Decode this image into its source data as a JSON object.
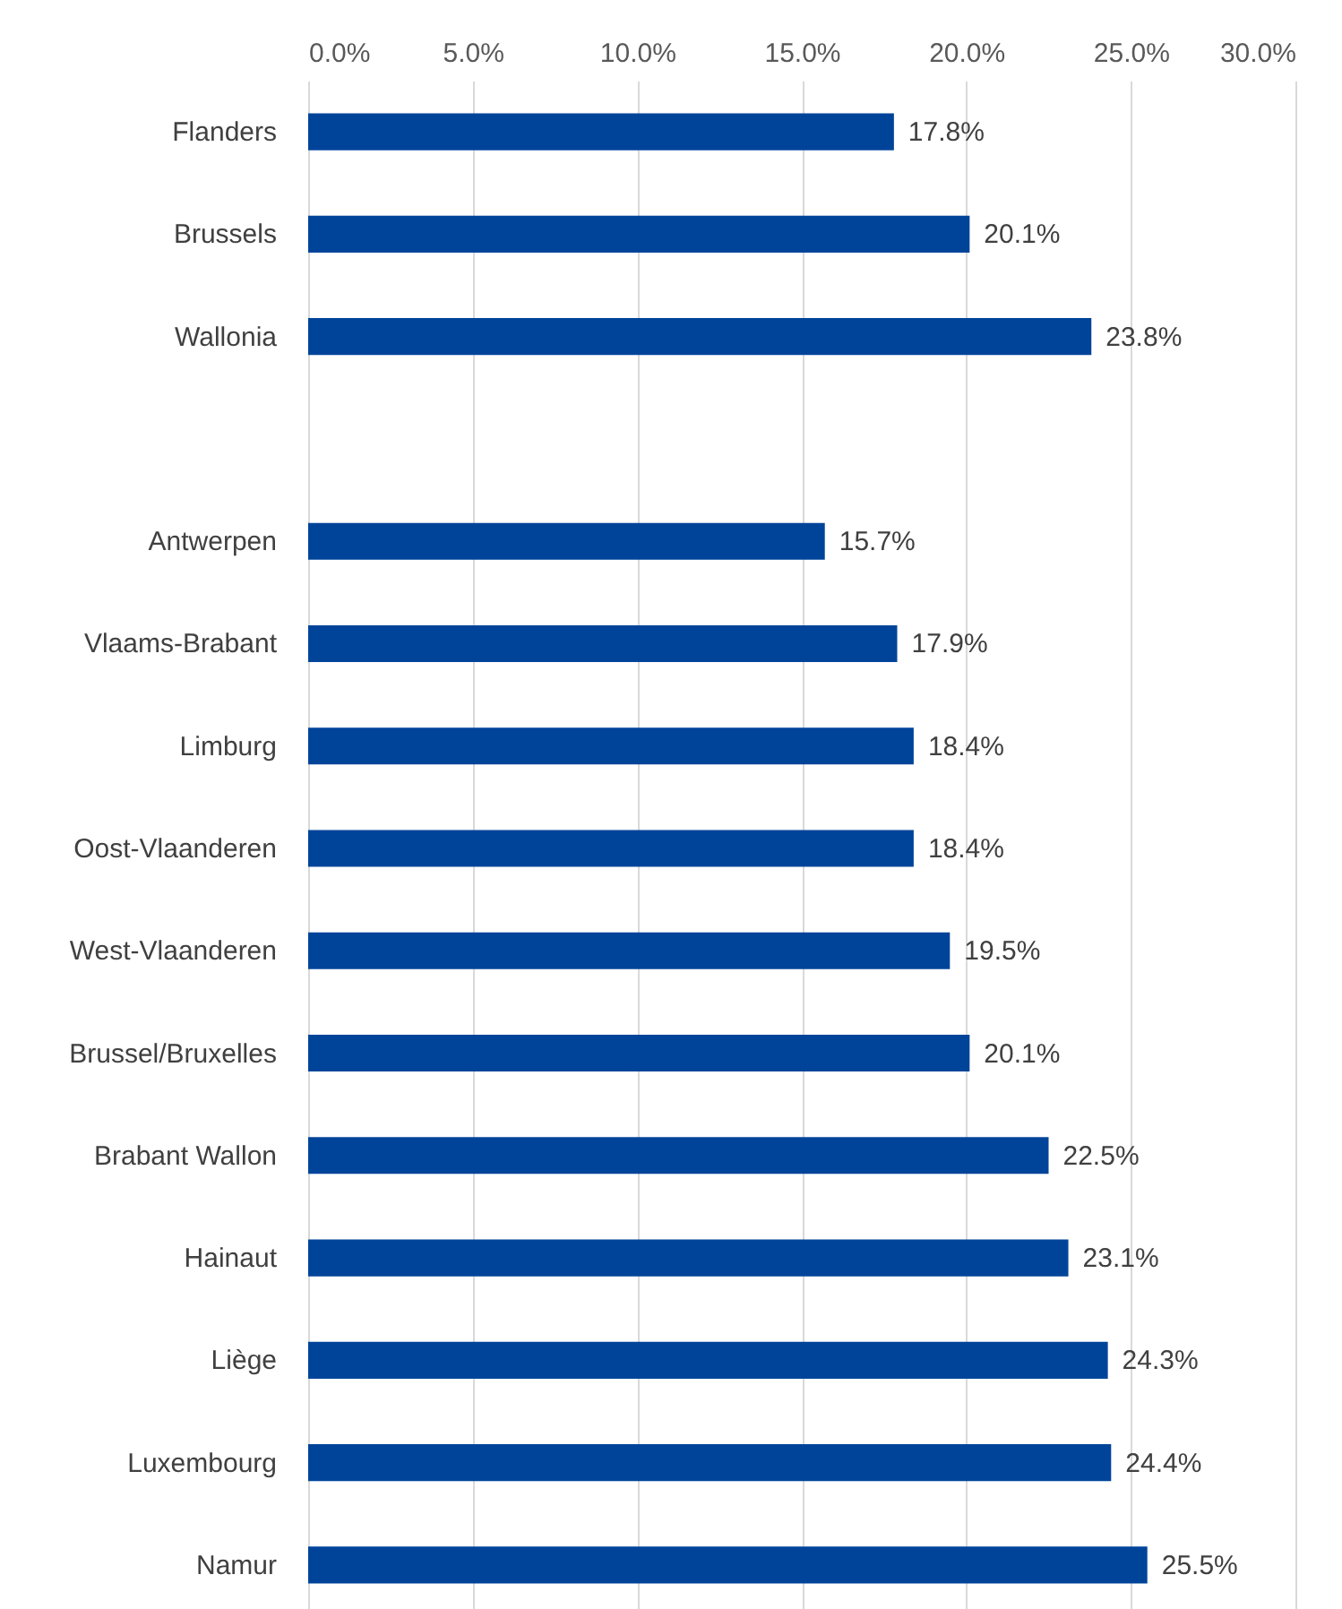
{
  "chart_data": {
    "type": "bar",
    "orientation": "horizontal",
    "categories": [
      "Flanders",
      "Brussels",
      "Wallonia",
      null,
      "Antwerpen",
      "Vlaams-Brabant",
      "Limburg",
      "Oost-Vlaanderen",
      "West-Vlaanderen",
      "Brussel/Bruxelles",
      "Brabant Wallon",
      "Hainaut",
      "Liège",
      "Luxembourg",
      "Namur"
    ],
    "values": [
      17.8,
      20.1,
      23.8,
      null,
      15.7,
      17.9,
      18.4,
      18.4,
      19.5,
      20.1,
      22.5,
      23.1,
      24.3,
      24.4,
      25.5
    ],
    "value_labels": [
      "17.8%",
      "20.1%",
      "23.8%",
      null,
      "15.7%",
      "17.9%",
      "18.4%",
      "18.4%",
      "19.5%",
      "20.1%",
      "22.5%",
      "23.1%",
      "24.3%",
      "24.4%",
      "25.5%"
    ],
    "color": "#00449a",
    "xlim": [
      0,
      30
    ],
    "xticks": [
      {
        "value": 0,
        "label": "0.0%"
      },
      {
        "value": 5,
        "label": "5.0%"
      },
      {
        "value": 10,
        "label": "10.0%"
      },
      {
        "value": 15,
        "label": "15.0%"
      },
      {
        "value": 20,
        "label": "20.0%"
      },
      {
        "value": 25,
        "label": "25.0%"
      },
      {
        "value": 30,
        "label": "30.0%"
      }
    ],
    "grid": "x"
  }
}
